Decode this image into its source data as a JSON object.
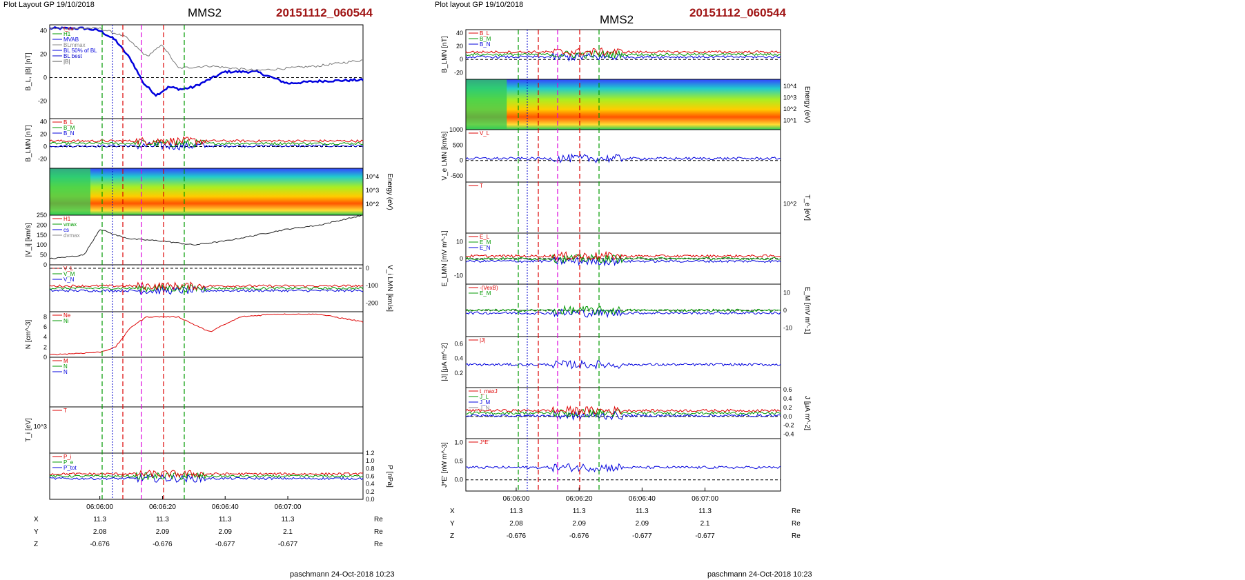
{
  "left": {
    "plot_layout": "Plot Layout GP 19/10/2018",
    "spacecraft": "MMS2",
    "event": "20151112_060544",
    "footer": "paschmann 24-Oct-2018 10:23",
    "time_ticks": [
      "06:06:00",
      "06:06:20",
      "06:06:40",
      "06:07:00"
    ],
    "orbit": {
      "X": [
        "11.3",
        "11.3",
        "11.3",
        "11.3"
      ],
      "Y": [
        "2.08",
        "2.09",
        "2.09",
        "2.1"
      ],
      "Z": [
        "-0.676",
        "-0.676",
        "-0.677",
        "-0.677"
      ],
      "unit": "Re"
    }
  },
  "right": {
    "plot_layout": "Plot layout GP 19/10/2018",
    "spacecraft": "MMS2",
    "event": "20151112_060544",
    "footer": "paschmann 24-Oct-2018 10:23",
    "time_ticks": [
      "06:06:00",
      "06:06:20",
      "06:06:40",
      "06:07:00"
    ],
    "orbit": {
      "X": [
        "11.3",
        "11.3",
        "11.3",
        "11.3"
      ],
      "Y": [
        "2.08",
        "2.09",
        "2.09",
        "2.1"
      ],
      "Z": [
        "-0.676",
        "-0.676",
        "-0.677",
        "-0.677"
      ],
      "unit": "Re"
    }
  },
  "chart_data": [
    {
      "type": "line",
      "title": "MMS2 20151112_060544",
      "column": "left",
      "xlabel": "",
      "xlim": [
        "06:05:44",
        "06:07:24"
      ],
      "panels": [
        {
          "id": "L1",
          "ylabel": "B_L, |B| [nT]",
          "ylim": [
            -35,
            45
          ],
          "yticks": [
            "40",
            "20",
            "0",
            "-20"
          ],
          "legend": [
            "t_cs",
            "H1",
            "MVAB",
            "BLmmax",
            "BL 50% of BL",
            "BL best",
            "|B|"
          ],
          "series": [
            {
              "name": "BL best",
              "color": "#0000dd",
              "x": [
                "06:05:44",
                "06:05:55",
                "06:06:00",
                "06:06:05",
                "06:06:10",
                "06:06:14",
                "06:06:18",
                "06:06:22",
                "06:06:26",
                "06:06:30",
                "06:06:40",
                "06:06:50",
                "06:07:00",
                "06:07:10",
                "06:07:24"
              ],
              "y": [
                42,
                42,
                40,
                32,
                15,
                -5,
                -15,
                -8,
                -10,
                -8,
                5,
                5,
                -5,
                -3,
                -2
              ]
            },
            {
              "name": "|B|",
              "color": "#777777",
              "x": [
                "06:05:44",
                "06:06:00",
                "06:06:08",
                "06:06:15",
                "06:06:20",
                "06:06:25",
                "06:06:35",
                "06:06:50",
                "06:07:00",
                "06:07:10",
                "06:07:24"
              ],
              "y": [
                42,
                42,
                35,
                18,
                28,
                8,
                10,
                6,
                8,
                10,
                15
              ]
            }
          ]
        },
        {
          "id": "L2",
          "ylabel": "B_LMN [nT]",
          "ylim": [
            -35,
            45
          ],
          "yticks": [
            "40",
            "20",
            "0",
            "-20"
          ],
          "legend": [
            "B_L",
            "B_M",
            "B_N"
          ]
        },
        {
          "id": "L3",
          "ylabel": "Energy (eV)",
          "type": "heatmap",
          "yticks": [
            "10^4",
            "10^3",
            "10^2"
          ]
        },
        {
          "id": "L4",
          "ylabel": "|V_i| [km/s]",
          "ylim": [
            0,
            250
          ],
          "yticks": [
            "250",
            "200",
            "150",
            "100",
            "50",
            "0"
          ],
          "legend": [
            "H1",
            "vmax",
            "cs",
            "dvmax"
          ],
          "series": [
            {
              "name": "|V_i|",
              "color": "#222222",
              "x": [
                "06:05:44",
                "06:05:55",
                "06:06:00",
                "06:06:05",
                "06:06:10",
                "06:06:20",
                "06:06:30",
                "06:06:40",
                "06:06:50",
                "06:07:00",
                "06:07:10",
                "06:07:24"
              ],
              "y": [
                30,
                50,
                180,
                150,
                130,
                120,
                100,
                120,
                150,
                180,
                200,
                250
              ]
            }
          ]
        },
        {
          "id": "L5",
          "ylabel": "V_i LMN [km/s]",
          "ylim": [
            -250,
            20
          ],
          "yticks": [
            "0",
            "-100",
            "-200"
          ],
          "legend": [
            "V_L",
            "V_M",
            "V_N"
          ]
        },
        {
          "id": "L6",
          "ylabel": "N [cm^-3]",
          "ylim": [
            0,
            9
          ],
          "yticks": [
            "8",
            "6",
            "4",
            "2",
            "0"
          ],
          "legend": [
            "Ne",
            "Ni"
          ],
          "series": [
            {
              "name": "Ne",
              "color": "#dd0000",
              "x": [
                "06:05:44",
                "06:06:00",
                "06:06:05",
                "06:06:10",
                "06:06:15",
                "06:06:25",
                "06:06:35",
                "06:06:45",
                "06:06:55",
                "06:07:10",
                "06:07:24"
              ],
              "y": [
                0.5,
                1,
                2,
                6,
                8,
                8,
                5,
                8,
                8.5,
                8.5,
                7
              ]
            }
          ]
        },
        {
          "id": "L7",
          "ylabel": "",
          "legend": [
            "M",
            "N",
            "N"
          ]
        },
        {
          "id": "L8",
          "ylabel": "T_i [eV]",
          "yticks": [
            "10^3"
          ],
          "legend": [
            "T"
          ]
        },
        {
          "id": "L9",
          "ylabel": "P [nPa]",
          "ylim": [
            0,
            1.2
          ],
          "yticks": [
            "1.2",
            "1.0",
            "0.8",
            "0.6",
            "0.4",
            "0.2",
            "0.0"
          ],
          "legend": [
            "P_i",
            "P_e",
            "P_tot"
          ]
        }
      ]
    },
    {
      "type": "line",
      "title": "MMS2 20151112_060544",
      "column": "right",
      "xlabel": "",
      "xlim": [
        "06:05:44",
        "06:07:24"
      ],
      "panels": [
        {
          "id": "R1",
          "ylabel": "B_LMN [nT]",
          "ylim": [
            -30,
            45
          ],
          "yticks": [
            "40",
            "20",
            "0",
            "-20"
          ],
          "legend": [
            "B_L",
            "B_M",
            "B_N"
          ]
        },
        {
          "id": "R2",
          "ylabel": "Energy (eV)",
          "type": "heatmap",
          "yticks": [
            "10^4",
            "10^3",
            "10^2",
            "10^1"
          ]
        },
        {
          "id": "R3",
          "ylabel": "V_e LMN [km/s]",
          "ylim": [
            -700,
            1000
          ],
          "yticks": [
            "1000",
            "500",
            "0",
            "-500"
          ],
          "legend": [
            "V_L"
          ]
        },
        {
          "id": "R4",
          "ylabel": "T_e [eV]",
          "yticks": [
            "10^2"
          ],
          "legend": [
            "T"
          ]
        },
        {
          "id": "R5",
          "ylabel": "E_LMN [mV m^-1]",
          "ylim": [
            -15,
            15
          ],
          "yticks": [
            "10",
            "0",
            "-10"
          ],
          "legend": [
            "E_L",
            "E_M",
            "E_N"
          ]
        },
        {
          "id": "R6",
          "ylabel": "E_M [mV m^-1]",
          "ylim": [
            -15,
            15
          ],
          "yticks": [
            "10",
            "0",
            "-10"
          ],
          "legend": [
            "-(VexB)",
            "E_M"
          ]
        },
        {
          "id": "R7",
          "ylabel": "|J| [μA m^-2]",
          "ylim": [
            0,
            0.7
          ],
          "yticks": [
            "0.6",
            "0.4",
            "0.2"
          ],
          "legend": [
            "|J|"
          ]
        },
        {
          "id": "R8",
          "ylabel": "J [μA m^-2]",
          "ylim": [
            -0.5,
            0.65
          ],
          "yticks": [
            "0.6",
            "0.4",
            "0.2",
            "0.0",
            "-0.2",
            "-0.4"
          ],
          "legend": [
            "t_maxJ",
            "J_L",
            "J_M",
            "J_N"
          ]
        },
        {
          "id": "R9",
          "ylabel": "J*E' [nW m^-3]",
          "ylim": [
            -0.3,
            1.1
          ],
          "yticks": [
            "1.0",
            "0.5",
            "0.0"
          ],
          "legend": [
            "J*E'"
          ]
        }
      ]
    }
  ]
}
